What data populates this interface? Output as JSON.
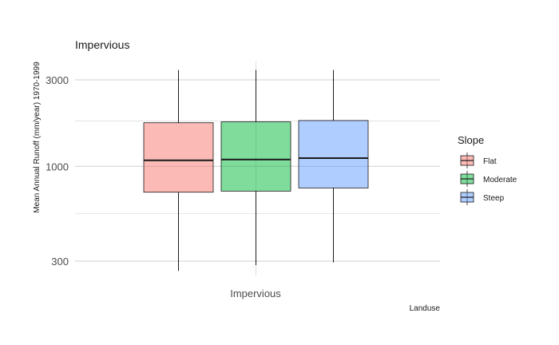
{
  "chart_data": {
    "type": "boxplot",
    "title": "Impervious",
    "xlabel": "Landuse",
    "ylabel": "Mean Annual Runoff (mm/year) 1970-1999",
    "y_scale": "log",
    "ylim": [
      250,
      3800
    ],
    "yticks": [
      300,
      1000,
      3000
    ],
    "y_tick_labels": [
      "300",
      "1000",
      "3000"
    ],
    "y_minor_gridlines": [
      548,
      1780
    ],
    "categories": [
      "Impervious"
    ],
    "legend_title": "Slope",
    "legend_position": "right",
    "grid": true,
    "series": [
      {
        "name": "Flat",
        "color": "#F8766D",
        "min": 265,
        "q1": 720,
        "median": 1080,
        "q3": 1740,
        "max": 3400
      },
      {
        "name": "Moderate",
        "color": "#00BA38",
        "min": 285,
        "q1": 730,
        "median": 1090,
        "q3": 1760,
        "max": 3400
      },
      {
        "name": "Steep",
        "color": "#619CFF",
        "min": 295,
        "q1": 760,
        "median": 1110,
        "q3": 1790,
        "max": 3400
      }
    ]
  }
}
